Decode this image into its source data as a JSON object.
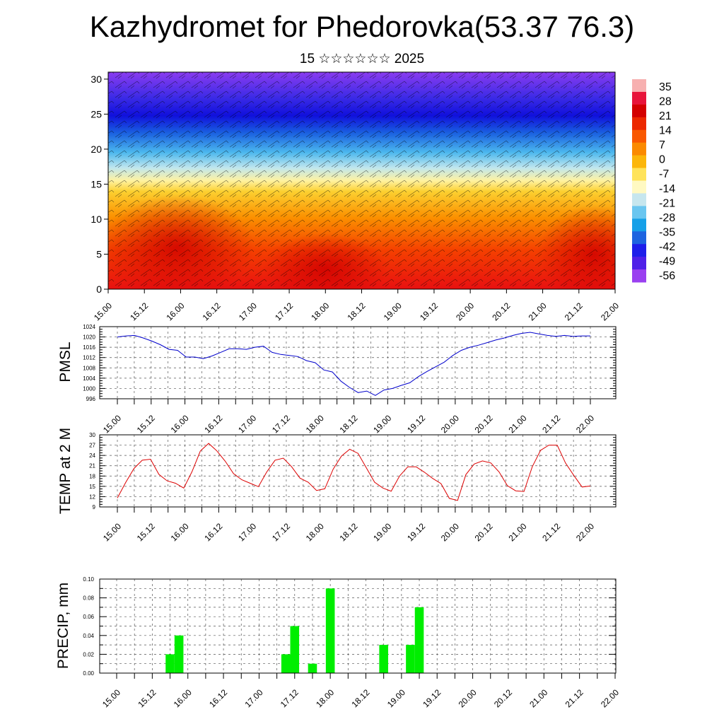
{
  "title": "Kazhydromet for Phedorovka(53.37 76.3)",
  "subtitle": "15 ☆☆☆☆☆☆ 2025",
  "colors": {
    "pmsl_line": "#0000cc",
    "temp_line": "#dd0000",
    "precip_bar": "#00ee00",
    "grid": "#555555"
  },
  "colorbar": {
    "labels": [
      "35",
      "28",
      "21",
      "14",
      "7",
      "0",
      "-7",
      "-14",
      "-21",
      "-28",
      "-35",
      "-42",
      "-49",
      "-56"
    ],
    "colors": [
      "#f7b0b0",
      "#e8143a",
      "#d40000",
      "#ec2800",
      "#f95800",
      "#fb8a00",
      "#fcb60a",
      "#ffe35a",
      "#fff9c2",
      "#c6e6ee",
      "#6ac6f0",
      "#16a0e8",
      "#1e64e0",
      "#1e1eea",
      "#5020e8",
      "#9a40f0"
    ]
  },
  "chart_data": [
    {
      "type": "heatmap",
      "title": "",
      "xlabel": "",
      "ylabel": "",
      "x_ticks": [
        "15.00",
        "15.12",
        "16.00",
        "16.12",
        "17.00",
        "17.12",
        "18.00",
        "18.12",
        "19.00",
        "19.12",
        "20.00",
        "20.12",
        "21.00",
        "21.12",
        "22.00"
      ],
      "y_ticks": [
        "0",
        "5",
        "10",
        "15",
        "20",
        "25",
        "30"
      ],
      "ylim": [
        0,
        31
      ],
      "colorbar_range": [
        -56,
        35
      ],
      "description_free": true
    },
    {
      "type": "line",
      "ylabel": "PMSL",
      "ylim": [
        996,
        1024
      ],
      "y_ticks": [
        "996",
        "1000",
        "1004",
        "1008",
        "1012",
        "1016",
        "1020",
        "1024"
      ],
      "x_ticks": [
        "15.00",
        "15.12",
        "16.00",
        "16.12",
        "17.00",
        "17.12",
        "18.00",
        "18.12",
        "19.00",
        "19.12",
        "20.00",
        "20.12",
        "21.00",
        "21.12",
        "22.00"
      ],
      "series": [
        {
          "values": [
            1020,
            1020.4,
            1020.6,
            1019.6,
            1018.4,
            1017,
            1015.2,
            1014.8,
            1012.2,
            1012.2,
            1011.6,
            1012.6,
            1014,
            1015.4,
            1015.4,
            1015.2,
            1016,
            1016.4,
            1014,
            1013.2,
            1012.8,
            1012.4,
            1010.8,
            1010,
            1007.2,
            1006.4,
            1002.8,
            1000.4,
            998.4,
            999,
            997.3,
            999.4,
            1000,
            1001.2,
            1002.2,
            1004.6,
            1006.6,
            1008.4,
            1010.2,
            1012.8,
            1014.8,
            1016,
            1016.8,
            1017.8,
            1018.8,
            1019.6,
            1020.6,
            1021.4,
            1021.8,
            1021.2,
            1020.6,
            1020.2,
            1020.6,
            1020.2,
            1020.4,
            1020.4
          ]
        }
      ]
    },
    {
      "type": "line",
      "ylabel": "TEMP at 2 M",
      "ylim": [
        9,
        30
      ],
      "y_ticks": [
        "9",
        "12",
        "15",
        "18",
        "21",
        "24",
        "27",
        "30"
      ],
      "x_ticks": [
        "15.00",
        "15.12",
        "16.00",
        "16.12",
        "17.00",
        "17.12",
        "18.00",
        "18.12",
        "19.00",
        "19.12",
        "20.00",
        "20.12",
        "21.00",
        "21.12",
        "22.00"
      ],
      "series": [
        {
          "values": [
            11.6,
            16.1,
            20.2,
            22.6,
            22.9,
            18.5,
            16.6,
            15.9,
            14.5,
            19.3,
            25.3,
            27.5,
            25.3,
            22.3,
            18.7,
            16.9,
            15.9,
            14.9,
            19.2,
            22.6,
            23.2,
            20.7,
            17.4,
            16.2,
            13.8,
            14.3,
            20,
            23.8,
            25.8,
            24.6,
            20.4,
            16.2,
            14.5,
            13.6,
            18,
            20.7,
            20.7,
            19.1,
            17.3,
            15.8,
            11.5,
            10.9,
            18.4,
            21.5,
            22.4,
            21.8,
            19.2,
            15.2,
            13.7,
            13.5,
            20.7,
            25.5,
            27,
            27,
            21.8,
            18.2,
            14.8,
            15.1
          ]
        }
      ]
    },
    {
      "type": "bar",
      "ylabel": "PRECIP, mm",
      "ylim": [
        0,
        0.1
      ],
      "y_ticks": [
        "0.00",
        "0.02",
        "0.04",
        "0.06",
        "0.08",
        "0.10"
      ],
      "x_ticks": [
        "15.00",
        "15.12",
        "16.00",
        "16.12",
        "17.00",
        "17.12",
        "18.00",
        "18.12",
        "19.00",
        "19.12",
        "20.00",
        "20.12",
        "21.00",
        "21.12",
        "22.00"
      ],
      "bars": [
        {
          "time": 0.75,
          "value": 0.02
        },
        {
          "time": 0.875,
          "value": 0.04
        },
        {
          "time": 2.375,
          "value": 0.02
        },
        {
          "time": 2.5,
          "value": 0.05
        },
        {
          "time": 2.75,
          "value": 0.01
        },
        {
          "time": 3.0,
          "value": 0.09
        },
        {
          "time": 3.75,
          "value": 0.03
        },
        {
          "time": 4.125,
          "value": 0.03
        },
        {
          "time": 4.25,
          "value": 0.07
        }
      ]
    }
  ]
}
